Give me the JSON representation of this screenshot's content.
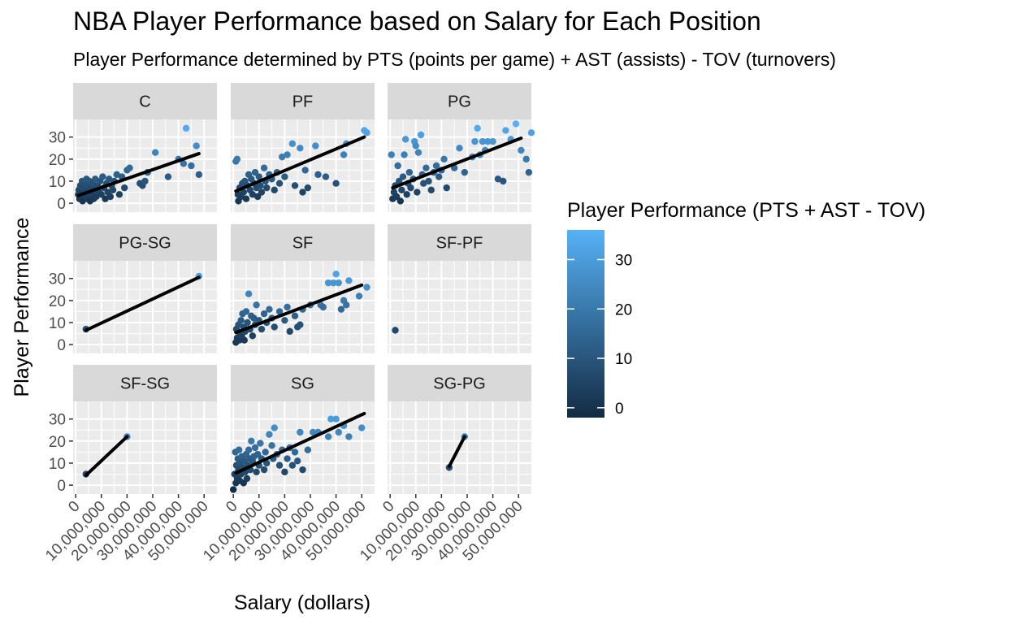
{
  "chart_data": {
    "type": "scatter",
    "title": "NBA Player Performance based on Salary for Each Position",
    "subtitle": "Player Performance determined by PTS (points per game) + AST (assists) - TOV (turnovers)",
    "xlabel": "Salary (dollars)",
    "ylabel": "Player Performance",
    "xlim": [
      -1000000,
      55000000
    ],
    "ylim": [
      -4,
      38
    ],
    "x_ticks": [
      0,
      10000000,
      20000000,
      30000000,
      40000000,
      50000000
    ],
    "x_tick_labels": [
      "0",
      "10,000,000",
      "20,000,000",
      "30,000,000",
      "40,000,000",
      "50,000,000"
    ],
    "y_ticks": [
      0,
      10,
      20,
      30
    ],
    "y_tick_labels": [
      "0",
      "10",
      "20",
      "30"
    ],
    "grid": true,
    "facet_layout": "3x3",
    "legend": {
      "title": "Player Performance (PTS + AST - TOV)",
      "position": "right",
      "range": [
        -2,
        36
      ],
      "ticks": [
        0,
        10,
        20,
        30
      ],
      "tick_labels": [
        "0",
        "10",
        "20",
        "30"
      ],
      "color_low": "#132B43",
      "color_high": "#56B1F7"
    },
    "panels": [
      {
        "label": "C",
        "trend": [
          [
            1000000,
            3.5
          ],
          [
            48000000,
            22.5
          ]
        ],
        "points": [
          [
            1000000,
            4
          ],
          [
            1200000,
            6
          ],
          [
            1500000,
            2
          ],
          [
            1800000,
            8
          ],
          [
            2000000,
            3
          ],
          [
            2200000,
            5
          ],
          [
            2500000,
            10
          ],
          [
            2700000,
            1
          ],
          [
            3000000,
            7
          ],
          [
            3200000,
            4
          ],
          [
            3500000,
            9
          ],
          [
            3800000,
            2
          ],
          [
            4000000,
            6
          ],
          [
            4200000,
            11
          ],
          [
            4500000,
            3
          ],
          [
            4800000,
            8
          ],
          [
            5000000,
            5
          ],
          [
            5300000,
            10
          ],
          [
            5600000,
            1
          ],
          [
            6000000,
            7
          ],
          [
            6300000,
            4
          ],
          [
            6600000,
            9
          ],
          [
            7000000,
            2
          ],
          [
            7300000,
            6
          ],
          [
            7600000,
            11
          ],
          [
            8000000,
            3
          ],
          [
            8500000,
            8
          ],
          [
            9000000,
            5
          ],
          [
            9500000,
            10
          ],
          [
            10000000,
            4
          ],
          [
            10500000,
            12
          ],
          [
            11000000,
            7
          ],
          [
            11500000,
            2
          ],
          [
            12000000,
            9
          ],
          [
            12500000,
            5
          ],
          [
            13000000,
            11
          ],
          [
            13500000,
            3
          ],
          [
            14000000,
            8
          ],
          [
            14500000,
            6
          ],
          [
            15000000,
            10
          ],
          [
            16000000,
            13
          ],
          [
            17000000,
            4
          ],
          [
            18000000,
            12
          ],
          [
            19000000,
            7
          ],
          [
            20000000,
            15
          ],
          [
            21000000,
            16
          ],
          [
            25000000,
            9
          ],
          [
            26000000,
            8
          ],
          [
            27000000,
            10
          ],
          [
            28000000,
            14
          ],
          [
            31000000,
            23
          ],
          [
            36000000,
            12
          ],
          [
            40000000,
            20
          ],
          [
            42000000,
            18
          ],
          [
            43000000,
            34
          ],
          [
            45000000,
            17
          ],
          [
            47000000,
            26
          ],
          [
            48000000,
            13
          ]
        ]
      },
      {
        "label": "PF",
        "trend": [
          [
            1000000,
            5.5
          ],
          [
            51000000,
            30
          ]
        ],
        "points": [
          [
            1000000,
            19
          ],
          [
            1500000,
            20
          ],
          [
            1800000,
            4
          ],
          [
            2000000,
            1
          ],
          [
            2500000,
            7
          ],
          [
            3000000,
            3
          ],
          [
            3500000,
            9
          ],
          [
            4000000,
            5
          ],
          [
            4500000,
            10
          ],
          [
            5000000,
            2
          ],
          [
            5500000,
            8
          ],
          [
            6000000,
            13
          ],
          [
            6500000,
            6
          ],
          [
            7000000,
            11
          ],
          [
            7500000,
            4
          ],
          [
            8000000,
            9
          ],
          [
            8500000,
            14
          ],
          [
            9000000,
            7
          ],
          [
            9500000,
            3
          ],
          [
            10000000,
            12
          ],
          [
            10500000,
            8
          ],
          [
            11000000,
            5
          ],
          [
            12000000,
            16
          ],
          [
            12500000,
            10
          ],
          [
            13000000,
            7
          ],
          [
            14000000,
            13
          ],
          [
            15000000,
            11
          ],
          [
            16000000,
            6
          ],
          [
            17000000,
            14
          ],
          [
            18000000,
            9
          ],
          [
            19000000,
            21
          ],
          [
            20000000,
            12
          ],
          [
            21000000,
            22
          ],
          [
            23000000,
            27
          ],
          [
            24000000,
            8
          ],
          [
            26000000,
            25
          ],
          [
            27000000,
            5
          ],
          [
            28000000,
            15
          ],
          [
            29000000,
            7
          ],
          [
            32000000,
            26
          ],
          [
            33000000,
            13
          ],
          [
            36000000,
            12
          ],
          [
            40000000,
            9
          ],
          [
            43000000,
            22
          ],
          [
            44000000,
            27
          ],
          [
            51000000,
            33
          ],
          [
            52000000,
            32
          ]
        ]
      },
      {
        "label": "PG",
        "trend": [
          [
            1000000,
            7
          ],
          [
            51000000,
            29.5
          ]
        ],
        "points": [
          [
            500000,
            22
          ],
          [
            1000000,
            2
          ],
          [
            1500000,
            5
          ],
          [
            2000000,
            8
          ],
          [
            2500000,
            3
          ],
          [
            3000000,
            17
          ],
          [
            3500000,
            10
          ],
          [
            4000000,
            1
          ],
          [
            4500000,
            6
          ],
          [
            5000000,
            12
          ],
          [
            5500000,
            22
          ],
          [
            6000000,
            29
          ],
          [
            6500000,
            4
          ],
          [
            7000000,
            9
          ],
          [
            7500000,
            14
          ],
          [
            8000000,
            7
          ],
          [
            9000000,
            11
          ],
          [
            9500000,
            28
          ],
          [
            10000000,
            26
          ],
          [
            10500000,
            5
          ],
          [
            11000000,
            23
          ],
          [
            12000000,
            31
          ],
          [
            12500000,
            13
          ],
          [
            13000000,
            9
          ],
          [
            14000000,
            16
          ],
          [
            15000000,
            10
          ],
          [
            16000000,
            6
          ],
          [
            17000000,
            14
          ],
          [
            18000000,
            17
          ],
          [
            19000000,
            12
          ],
          [
            20000000,
            15
          ],
          [
            21000000,
            20
          ],
          [
            22000000,
            7
          ],
          [
            25000000,
            16
          ],
          [
            27000000,
            25
          ],
          [
            29000000,
            14
          ],
          [
            32000000,
            21
          ],
          [
            33000000,
            28
          ],
          [
            34000000,
            34
          ],
          [
            35000000,
            22
          ],
          [
            36000000,
            28
          ],
          [
            37000000,
            24
          ],
          [
            38000000,
            28
          ],
          [
            40000000,
            28
          ],
          [
            42000000,
            11
          ],
          [
            44000000,
            10
          ],
          [
            45000000,
            33
          ],
          [
            47000000,
            29
          ],
          [
            49000000,
            36
          ],
          [
            51000000,
            24
          ],
          [
            53000000,
            20
          ],
          [
            54000000,
            14
          ],
          [
            55000000,
            32
          ]
        ]
      },
      {
        "label": "PG-SG",
        "trend": [
          [
            4000000,
            6.5
          ],
          [
            48000000,
            30.5
          ]
        ],
        "points": [
          [
            4000000,
            7
          ],
          [
            48000000,
            31
          ]
        ]
      },
      {
        "label": "SF",
        "trend": [
          [
            1000000,
            5.5
          ],
          [
            50000000,
            27
          ]
        ],
        "points": [
          [
            1000000,
            1
          ],
          [
            1200000,
            7
          ],
          [
            1500000,
            3
          ],
          [
            2000000,
            9
          ],
          [
            2300000,
            2
          ],
          [
            2600000,
            5
          ],
          [
            3000000,
            11
          ],
          [
            3300000,
            4
          ],
          [
            3600000,
            14
          ],
          [
            4000000,
            8
          ],
          [
            4300000,
            2
          ],
          [
            4600000,
            6
          ],
          [
            5000000,
            15
          ],
          [
            5500000,
            10
          ],
          [
            6000000,
            23
          ],
          [
            6500000,
            7
          ],
          [
            7000000,
            13
          ],
          [
            7500000,
            4
          ],
          [
            8000000,
            12
          ],
          [
            8500000,
            9
          ],
          [
            9000000,
            18
          ],
          [
            10000000,
            11
          ],
          [
            11000000,
            7
          ],
          [
            12000000,
            14
          ],
          [
            13000000,
            10
          ],
          [
            14000000,
            16
          ],
          [
            15000000,
            12
          ],
          [
            16000000,
            8
          ],
          [
            18000000,
            15
          ],
          [
            20000000,
            11
          ],
          [
            21000000,
            17
          ],
          [
            22000000,
            6
          ],
          [
            24000000,
            13
          ],
          [
            25000000,
            8
          ],
          [
            26000000,
            9
          ],
          [
            27000000,
            16
          ],
          [
            30000000,
            18
          ],
          [
            34000000,
            18
          ],
          [
            35000000,
            17
          ],
          [
            37000000,
            28
          ],
          [
            39000000,
            28
          ],
          [
            40000000,
            32
          ],
          [
            41000000,
            28
          ],
          [
            42000000,
            16
          ],
          [
            43000000,
            20
          ],
          [
            44000000,
            18
          ],
          [
            45000000,
            29
          ],
          [
            49000000,
            22
          ],
          [
            52000000,
            26
          ]
        ]
      },
      {
        "label": "SF-PF",
        "trend": null,
        "points": [
          [
            2000000,
            6.5
          ]
        ]
      },
      {
        "label": "SF-SG",
        "trend": [
          [
            4000000,
            4.5
          ],
          [
            20000000,
            22
          ]
        ],
        "points": [
          [
            4000000,
            5
          ],
          [
            20000000,
            22
          ]
        ]
      },
      {
        "label": "SG",
        "trend": [
          [
            1000000,
            5.5
          ],
          [
            51000000,
            32.5
          ]
        ],
        "points": [
          [
            0,
            -2
          ],
          [
            500000,
            5
          ],
          [
            800000,
            15
          ],
          [
            1000000,
            1
          ],
          [
            1200000,
            9
          ],
          [
            1500000,
            3
          ],
          [
            1800000,
            12
          ],
          [
            2000000,
            7
          ],
          [
            2200000,
            16
          ],
          [
            2500000,
            2
          ],
          [
            2700000,
            10
          ],
          [
            3000000,
            5
          ],
          [
            3300000,
            13
          ],
          [
            3600000,
            8
          ],
          [
            4000000,
            1
          ],
          [
            4300000,
            11
          ],
          [
            4600000,
            6
          ],
          [
            5000000,
            14
          ],
          [
            5300000,
            3
          ],
          [
            5600000,
            9
          ],
          [
            6000000,
            16
          ],
          [
            6300000,
            12
          ],
          [
            6600000,
            7
          ],
          [
            7000000,
            20
          ],
          [
            7500000,
            11
          ],
          [
            8000000,
            13
          ],
          [
            8500000,
            17
          ],
          [
            9000000,
            6
          ],
          [
            9500000,
            14
          ],
          [
            10000000,
            9
          ],
          [
            10500000,
            19
          ],
          [
            11000000,
            12
          ],
          [
            12000000,
            7
          ],
          [
            12500000,
            15
          ],
          [
            13000000,
            10
          ],
          [
            14000000,
            23
          ],
          [
            15000000,
            18
          ],
          [
            15500000,
            12
          ],
          [
            16000000,
            26
          ],
          [
            17000000,
            14
          ],
          [
            18000000,
            9
          ],
          [
            19000000,
            16
          ],
          [
            20000000,
            6
          ],
          [
            21000000,
            12
          ],
          [
            22000000,
            17
          ],
          [
            23000000,
            9
          ],
          [
            24000000,
            15
          ],
          [
            25000000,
            11
          ],
          [
            26000000,
            24
          ],
          [
            27000000,
            7
          ],
          [
            29000000,
            16
          ],
          [
            31000000,
            24
          ],
          [
            33000000,
            24
          ],
          [
            37000000,
            22
          ],
          [
            38000000,
            30
          ],
          [
            40000000,
            30
          ],
          [
            41000000,
            24
          ],
          [
            43000000,
            27
          ],
          [
            45000000,
            22
          ],
          [
            50000000,
            26
          ]
        ]
      },
      {
        "label": "SG-PG",
        "trend": [
          [
            23000000,
            8.5
          ],
          [
            29000000,
            22
          ]
        ],
        "points": [
          [
            23000000,
            8
          ],
          [
            29000000,
            22
          ]
        ]
      }
    ]
  }
}
